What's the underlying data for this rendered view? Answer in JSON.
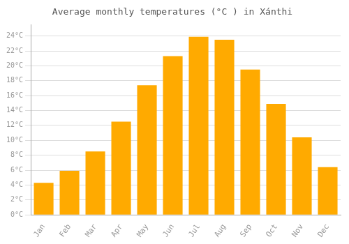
{
  "chart_data": {
    "type": "bar",
    "title": "Average monthly temperatures (°C ) in Xánthi",
    "categories": [
      "Jan",
      "Feb",
      "Mar",
      "Apr",
      "May",
      "Jun",
      "Jul",
      "Aug",
      "Sep",
      "Oct",
      "Nov",
      "Dec"
    ],
    "values": [
      4.3,
      5.9,
      8.5,
      12.5,
      17.4,
      21.3,
      23.9,
      23.5,
      19.5,
      14.9,
      10.4,
      6.4
    ],
    "color": "#FFAA00",
    "ylim": [
      0,
      25.5
    ],
    "yticks": [
      {
        "value": 0,
        "label": "0°C"
      },
      {
        "value": 2,
        "label": "2°C"
      },
      {
        "value": 4,
        "label": "4°C"
      },
      {
        "value": 6,
        "label": "6°C"
      },
      {
        "value": 8,
        "label": "8°C"
      },
      {
        "value": 10,
        "label": "10°C"
      },
      {
        "value": 12,
        "label": "12°C"
      },
      {
        "value": 14,
        "label": "14°C"
      },
      {
        "value": 16,
        "label": "16°C"
      },
      {
        "value": 18,
        "label": "18°C"
      },
      {
        "value": 20,
        "label": "20°C"
      },
      {
        "value": 22,
        "label": "22°C"
      },
      {
        "value": 24,
        "label": "24°C"
      }
    ],
    "grid": true
  }
}
